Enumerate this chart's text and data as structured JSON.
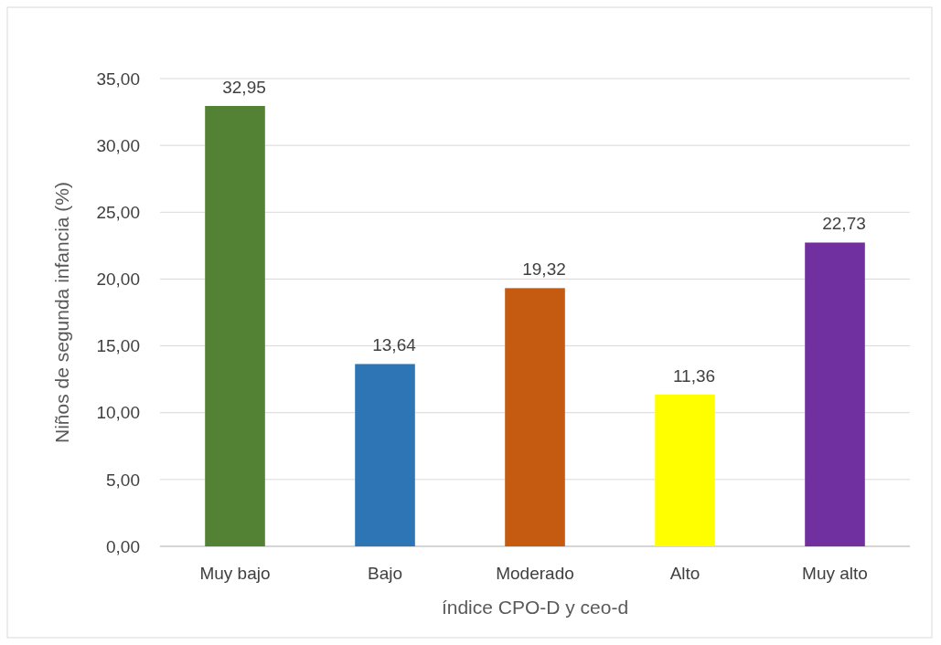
{
  "chart_data": {
    "type": "bar",
    "xlabel": "índice CPO-D y ceo-d",
    "ylabel": "Niños de segunda infancia (%)",
    "categories": [
      "Muy bajo",
      "Bajo",
      "Moderado",
      "Alto",
      "Muy alto"
    ],
    "values": [
      32.95,
      13.64,
      19.32,
      11.36,
      22.73
    ],
    "colors": [
      "#548235",
      "#2e75b6",
      "#c55a11",
      "#ffff00",
      "#7030a0"
    ],
    "value_labels": [
      "32,95",
      "13,64",
      "19,32",
      "11,36",
      "22,73"
    ],
    "ylim": [
      0,
      35
    ],
    "yticks": [
      {
        "value": 0,
        "label": "0,00"
      },
      {
        "value": 5,
        "label": "5,00"
      },
      {
        "value": 10,
        "label": "10,00"
      },
      {
        "value": 15,
        "label": "15,00"
      },
      {
        "value": 20,
        "label": "20,00"
      },
      {
        "value": 25,
        "label": "25,00"
      },
      {
        "value": 30,
        "label": "30,00"
      },
      {
        "value": 35,
        "label": "35,00"
      }
    ],
    "grid": "y"
  }
}
